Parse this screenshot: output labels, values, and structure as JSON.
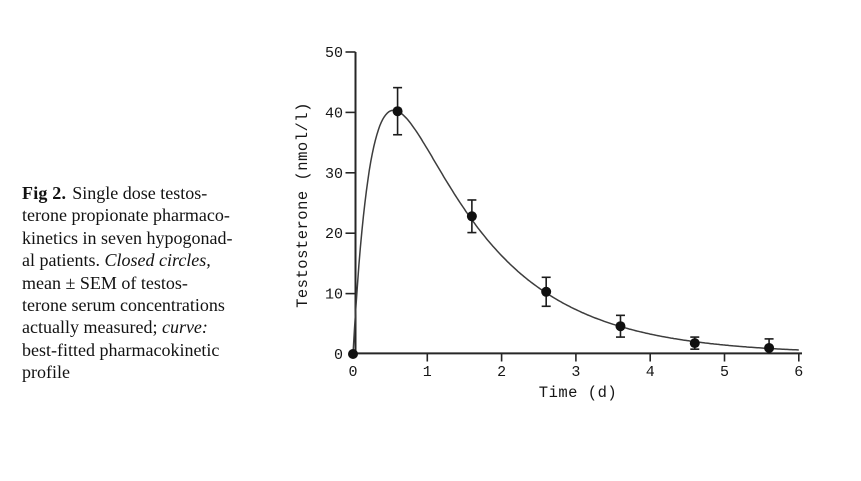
{
  "figure": {
    "caption": {
      "lines": [
        [
          {
            "text": "Fig 2.",
            "bold": true
          },
          {
            "text": "Single dose testos-"
          }
        ],
        [
          {
            "text": "terone propionate pharmaco-"
          }
        ],
        [
          {
            "text": "kinetics in seven hypogonad-"
          }
        ],
        [
          {
            "text": "al patients. "
          },
          {
            "text": "Closed circles,",
            "italic": true
          }
        ],
        [
          {
            "text": "mean ± SEM of testos-"
          }
        ],
        [
          {
            "text": "terone serum concentrations"
          }
        ],
        [
          {
            "text": "actually measured; "
          },
          {
            "text": "curve:",
            "italic": true
          }
        ],
        [
          {
            "text": "best-fitted pharmacokinetic"
          }
        ],
        [
          {
            "text": "profile"
          }
        ]
      ]
    }
  },
  "chart_data": {
    "type": "scatter",
    "title": "",
    "xlabel": "Time (d)",
    "ylabel": "Testosterone (nmol/l)",
    "xlim": [
      0,
      6
    ],
    "ylim": [
      0,
      50
    ],
    "x_ticks": [
      0,
      1,
      2,
      3,
      4,
      5,
      6
    ],
    "y_ticks": [
      0,
      10,
      20,
      30,
      40,
      50
    ],
    "grid": false,
    "legend": "none",
    "series": [
      {
        "name": "mean ± SEM of measured testosterone serum concentrations",
        "marker": "filled-circle",
        "x": [
          0,
          0.6,
          1.6,
          2.6,
          3.6,
          4.6,
          5.6
        ],
        "y": [
          0,
          40.2,
          22.8,
          10.3,
          4.6,
          1.8,
          1.0
        ],
        "sem": [
          0,
          3.9,
          2.7,
          2.4,
          1.8,
          1.0,
          1.5
        ]
      }
    ],
    "fitted_curve": {
      "name": "best-fitted pharmacokinetic profile",
      "model": "A*(exp(-ke*t)-exp(-ka*t))",
      "A": 81,
      "ka": 3.5,
      "ke": 0.8,
      "t_range": [
        0,
        6
      ],
      "peak": {
        "t": 0.55,
        "value": 40.3
      }
    },
    "colors": {
      "ink": "#161616",
      "axis": "#262626",
      "curve": "#3d3d3d",
      "marker": "#101010",
      "background": "#ffffff"
    }
  }
}
